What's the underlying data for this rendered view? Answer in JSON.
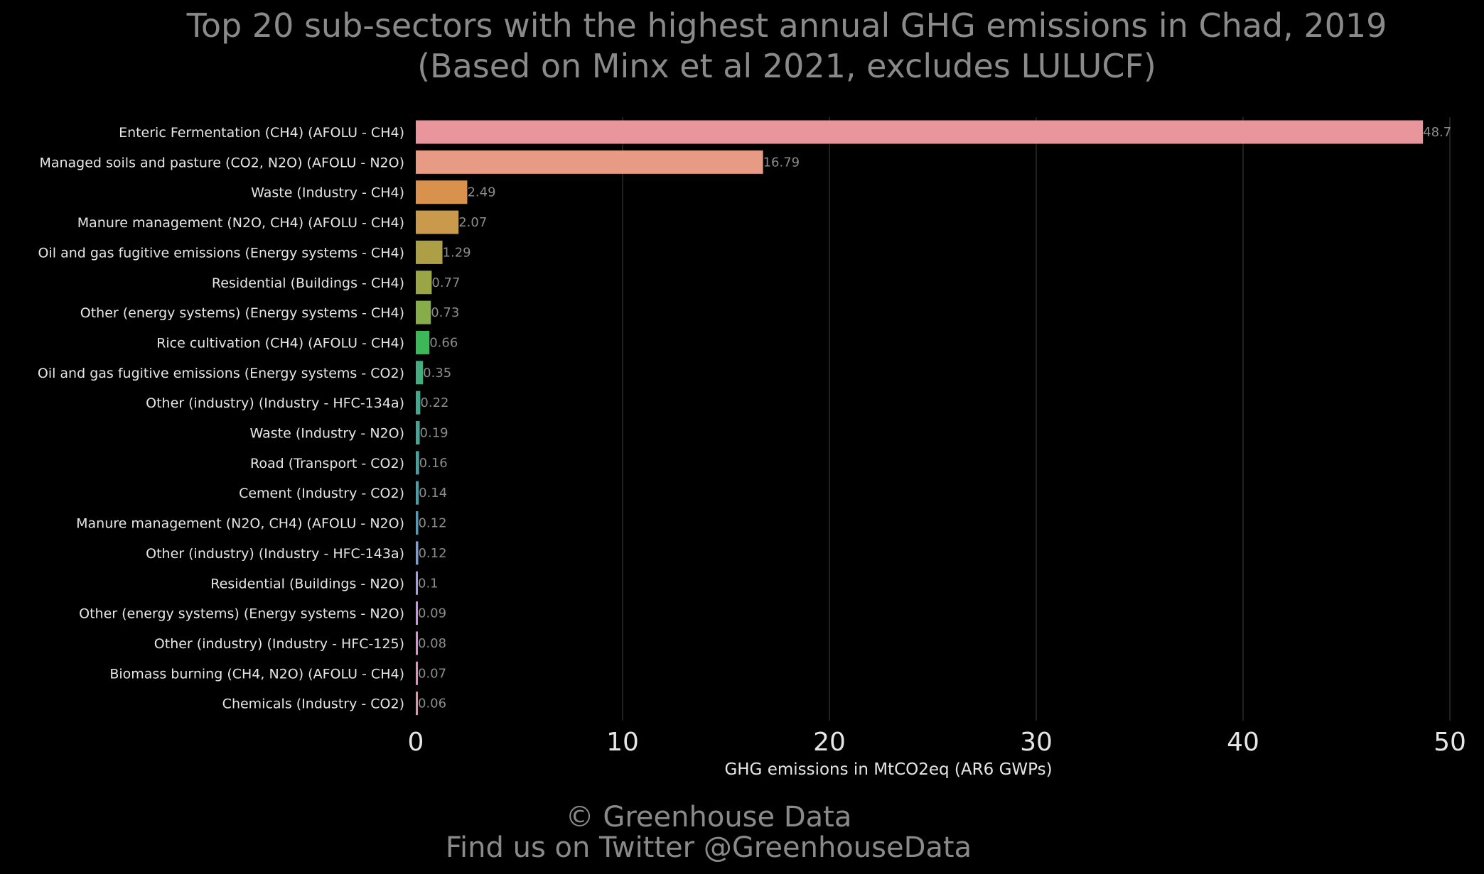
{
  "chart_data": {
    "type": "bar",
    "orientation": "horizontal",
    "title": [
      "Top 20 sub-sectors with the highest annual GHG emissions in Chad, 2019",
      "(Based on Minx et al 2021, excludes LULUCF)"
    ],
    "xlabel": "GHG emissions in MtCO2eq (AR6 GWPs)",
    "ylabel": "",
    "xlim": [
      0,
      50
    ],
    "xticks": [
      0,
      10,
      20,
      30,
      40,
      50
    ],
    "grid": "vertical",
    "categories": [
      "Enteric Fermentation (CH4) (AFOLU - CH4)",
      "Managed soils and pasture (CO2, N2O) (AFOLU - N2O)",
      "Waste (Industry - CH4)",
      "Manure management (N2O, CH4) (AFOLU - CH4)",
      "Oil and gas fugitive emissions (Energy systems - CH4)",
      "Residential (Buildings - CH4)",
      "Other (energy systems) (Energy systems - CH4)",
      "Rice cultivation (CH4) (AFOLU - CH4)",
      "Oil and gas fugitive emissions (Energy systems - CO2)",
      "Other (industry) (Industry - HFC-134a)",
      "Waste (Industry - N2O)",
      "Road (Transport - CO2)",
      "Cement (Industry - CO2)",
      "Manure management (N2O, CH4) (AFOLU - N2O)",
      "Other (industry) (Industry - HFC-143a)",
      "Residential (Buildings - N2O)",
      "Other (energy systems) (Energy systems - N2O)",
      "Other (industry) (Industry - HFC-125)",
      "Biomass burning (CH4, N2O) (AFOLU - CH4)",
      "Chemicals (Industry - CO2)"
    ],
    "values": [
      48.7,
      16.79,
      2.49,
      2.07,
      1.29,
      0.77,
      0.73,
      0.66,
      0.35,
      0.22,
      0.19,
      0.16,
      0.14,
      0.12,
      0.12,
      0.1,
      0.09,
      0.08,
      0.07,
      0.06
    ],
    "value_labels": [
      "48.7",
      "16.79",
      "2.49",
      "2.07",
      "1.29",
      "0.77",
      "0.73",
      "0.66",
      "0.35",
      "0.22",
      "0.19",
      "0.16",
      "0.14",
      "0.12",
      "0.12",
      "0.1",
      "0.09",
      "0.08",
      "0.07",
      "0.06"
    ],
    "colors": [
      "#e8959c",
      "#e89b84",
      "#d9924e",
      "#c99a4b",
      "#ad9f45",
      "#9aa546",
      "#86ad4a",
      "#3db858",
      "#43ad7e",
      "#45a88e",
      "#46a597",
      "#47a3a0",
      "#48a0ab",
      "#4a9fbc",
      "#7d9fd6",
      "#a39ee6",
      "#c797e6",
      "#dd90d4",
      "#e48fbf",
      "#e593a8"
    ]
  },
  "footer": {
    "copyright": "© Greenhouse Data",
    "twitter": "Find us on Twitter @GreenhouseData"
  }
}
